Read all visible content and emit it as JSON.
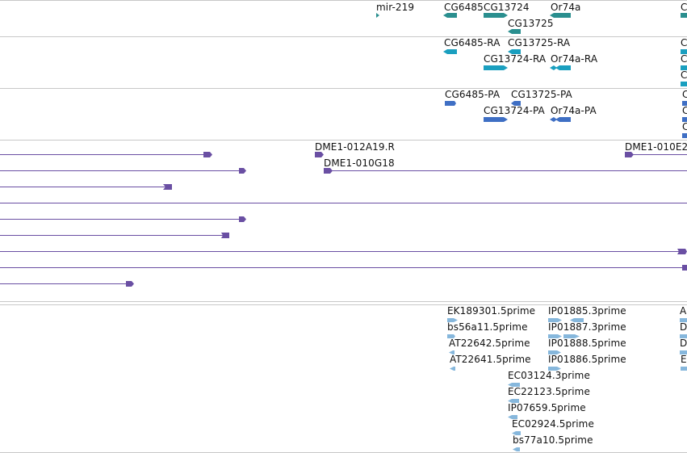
{
  "colors": {
    "gene": "#2a8f8f",
    "transcript": "#1a9fbf",
    "protein": "#3f6fc4",
    "clone": "#6a4fa3",
    "est": "#86b7dc",
    "separator": "#c8c8c8"
  },
  "tracks": {
    "genes": {
      "labels": [
        "mir-219",
        "CG6485",
        "CG13724",
        "Or74a",
        "CG13725",
        "C"
      ]
    },
    "transcripts": {
      "labels": [
        "CG6485-RA",
        "CG13725-RA",
        "CG13724-RA",
        "Or74a-RA",
        "C",
        "C",
        "C"
      ]
    },
    "proteins": {
      "labels": [
        "CG6485-PA",
        "CG13725-PA",
        "CG13724-PA",
        "Or74a-PA",
        "C",
        "C",
        "C"
      ]
    },
    "clones": {
      "labels": [
        "DME1-012A19.R",
        "DME1-010E2",
        "DME1-010G18"
      ]
    },
    "ests": {
      "labels": [
        "EK189301.5prime",
        "IP01885.3prime",
        "A",
        "bs56a11.5prime",
        "IP01887.3prime",
        "D",
        "AT22642.5prime",
        "IP01888.5prime",
        "D",
        "AT22641.5prime",
        "IP01886.5prime",
        "E",
        "EC03124.3prime",
        "EC22123.5prime",
        "IP07659.5prime",
        "EC02924.5prime",
        "bs77a10.5prime"
      ]
    }
  }
}
